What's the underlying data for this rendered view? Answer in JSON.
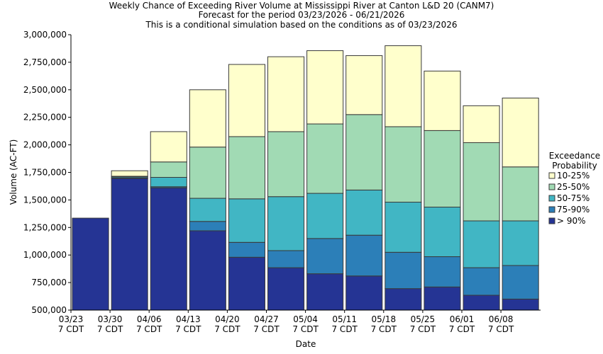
{
  "chart_data": {
    "type": "bar",
    "title_lines": [
      "Weekly Chance of Exceeding River Volume at Mississippi River at Canton L&D 20 (CANM7)",
      "Forecast for the period 03/23/2026 - 06/21/2026",
      "This is a conditional simulation based on the conditions as of 03/23/2026"
    ],
    "xlabel": "Date",
    "ylabel": "Volume (AC-FT)",
    "ylim": [
      500000,
      3000000
    ],
    "yticks": [
      "500,000",
      "750,000",
      "1,000,000",
      "1,250,000",
      "1,500,000",
      "1,750,000",
      "2,000,000",
      "2,250,000",
      "2,500,000",
      "2,750,000",
      "3,000,000"
    ],
    "ytick_values": [
      500000,
      750000,
      1000000,
      1250000,
      1500000,
      1750000,
      2000000,
      2250000,
      2500000,
      2750000,
      3000000
    ],
    "xticks": [
      {
        "date": "03/23",
        "tz": "7 CDT"
      },
      {
        "date": "03/30",
        "tz": "7 CDT"
      },
      {
        "date": "04/06",
        "tz": "7 CDT"
      },
      {
        "date": "04/13",
        "tz": "7 CDT"
      },
      {
        "date": "04/20",
        "tz": "7 CDT"
      },
      {
        "date": "04/27",
        "tz": "7 CDT"
      },
      {
        "date": "05/04",
        "tz": "7 CDT"
      },
      {
        "date": "05/11",
        "tz": "7 CDT"
      },
      {
        "date": "05/18",
        "tz": "7 CDT"
      },
      {
        "date": "05/25",
        "tz": "7 CDT"
      },
      {
        "date": "06/01",
        "tz": "7 CDT"
      },
      {
        "date": "06/08",
        "tz": "7 CDT"
      }
    ],
    "legend_title": [
      "Exceedance",
      "Probability"
    ],
    "legend_position": "right",
    "grid": false,
    "series": [
      {
        "name": "10-25%",
        "color": "#ffffcc"
      },
      {
        "name": "25-50%",
        "color": "#a1dab4"
      },
      {
        "name": "50-75%",
        "color": "#41b6c4"
      },
      {
        "name": "75-90%",
        "color": "#2c7fb8"
      },
      {
        "name": "> 90%",
        "color": "#253494"
      }
    ],
    "weeks": [
      {
        "gt90": 1335000,
        "p75_90": 1335000,
        "p50_75": 1335000,
        "p25_50": 1335000,
        "p10_25": 1335000
      },
      {
        "gt90": 1695000,
        "p75_90": 1700000,
        "p50_75": 1710000,
        "p25_50": 1715000,
        "p10_25": 1765000
      },
      {
        "gt90": 1610000,
        "p75_90": 1620000,
        "p50_75": 1705000,
        "p25_50": 1845000,
        "p10_25": 2120000
      },
      {
        "gt90": 1220000,
        "p75_90": 1305000,
        "p50_75": 1515000,
        "p25_50": 1980000,
        "p10_25": 2500000
      },
      {
        "gt90": 980000,
        "p75_90": 1115000,
        "p50_75": 1510000,
        "p25_50": 2075000,
        "p10_25": 2730000
      },
      {
        "gt90": 885000,
        "p75_90": 1040000,
        "p50_75": 1530000,
        "p25_50": 2120000,
        "p10_25": 2800000
      },
      {
        "gt90": 830000,
        "p75_90": 1150000,
        "p50_75": 1560000,
        "p25_50": 2190000,
        "p10_25": 2855000
      },
      {
        "gt90": 810000,
        "p75_90": 1180000,
        "p50_75": 1590000,
        "p25_50": 2275000,
        "p10_25": 2810000
      },
      {
        "gt90": 695000,
        "p75_90": 1025000,
        "p50_75": 1480000,
        "p25_50": 2165000,
        "p10_25": 2900000
      },
      {
        "gt90": 710000,
        "p75_90": 985000,
        "p50_75": 1435000,
        "p25_50": 2130000,
        "p10_25": 2670000
      },
      {
        "gt90": 635000,
        "p75_90": 885000,
        "p50_75": 1310000,
        "p25_50": 2020000,
        "p10_25": 2355000
      },
      {
        "gt90": 600000,
        "p75_90": 905000,
        "p50_75": 1310000,
        "p25_50": 1800000,
        "p10_25": 2425000
      }
    ]
  }
}
